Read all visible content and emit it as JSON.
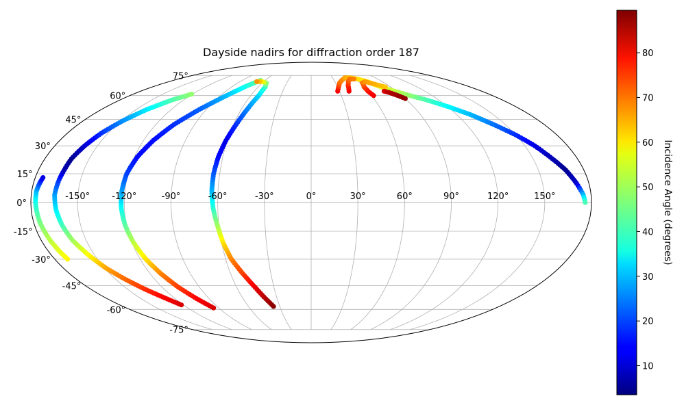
{
  "chart_data": {
    "type": "scatter",
    "projection": "mollweide",
    "title": "Dayside nadirs for diffraction order 187",
    "grid": true,
    "lon_ticks": [
      -150,
      -120,
      -90,
      -60,
      -30,
      0,
      30,
      60,
      90,
      120,
      150
    ],
    "lon_tick_labels": [
      "-150°",
      "-120°",
      "-90°",
      "-60°",
      "-30°",
      "0°",
      "30°",
      "60°",
      "90°",
      "120°",
      "150°"
    ],
    "lat_ticks": [
      -75,
      -60,
      -45,
      -30,
      -15,
      0,
      15,
      30,
      45,
      60,
      75
    ],
    "lat_tick_labels": [
      "-75°",
      "-60°",
      "-45°",
      "-30°",
      "-15°",
      "0°",
      "15°",
      "30°",
      "45°",
      "60°",
      "75°"
    ],
    "colorbar": {
      "label": "Incidence Angle (degrees)",
      "range": [
        3.5,
        89.5
      ],
      "ticks": [
        10,
        20,
        30,
        40,
        50,
        60,
        70,
        80
      ],
      "colormap": "jet"
    },
    "series": [
      {
        "points": [
          [
            -171,
            -30,
            58
          ],
          [
            -174,
            -20,
            52
          ],
          [
            -176,
            -10,
            46
          ],
          [
            -177,
            0,
            38
          ],
          [
            -177,
            6,
            30
          ],
          [
            -176,
            10,
            20
          ],
          [
            -175,
            13,
            12
          ]
        ]
      },
      {
        "points": [
          [
            -122,
            -57,
            82
          ],
          [
            -129,
            -52,
            79
          ],
          [
            -136,
            -47,
            75
          ],
          [
            -143,
            -41,
            70
          ],
          [
            -149,
            -35,
            65
          ],
          [
            -154,
            -28,
            58
          ],
          [
            -159,
            -20,
            50
          ],
          [
            -162,
            -12,
            42
          ],
          [
            -164,
            -4,
            35
          ],
          [
            -165,
            4,
            28
          ],
          [
            -164,
            12,
            18
          ],
          [
            -163,
            17,
            8
          ],
          [
            -162,
            23,
            5
          ],
          [
            -159,
            30,
            10
          ],
          [
            -155,
            37,
            18
          ],
          [
            -149,
            44,
            26
          ],
          [
            -141,
            51,
            34
          ],
          [
            -131,
            57,
            42
          ],
          [
            -121,
            61,
            48
          ]
        ]
      },
      {
        "points": [
          [
            -95,
            -59,
            82
          ],
          [
            -101,
            -53,
            79
          ],
          [
            -107,
            -46,
            74
          ],
          [
            -112,
            -38,
            68
          ],
          [
            -116,
            -30,
            60
          ],
          [
            -119,
            -21,
            52
          ],
          [
            -121,
            -12,
            44
          ],
          [
            -122,
            -3,
            37
          ],
          [
            -122,
            6,
            28
          ],
          [
            -121,
            15,
            20
          ],
          [
            -118,
            24,
            15
          ],
          [
            -113,
            33,
            15
          ],
          [
            -106,
            42,
            18
          ],
          [
            -96,
            51,
            22
          ],
          [
            -84,
            60,
            30
          ],
          [
            -74,
            67,
            38
          ],
          [
            -66,
            71,
            45
          ]
        ]
      },
      {
        "points": [
          [
            -36,
            -58,
            89
          ],
          [
            -41,
            -52,
            85
          ],
          [
            -46,
            -45,
            80
          ],
          [
            -51,
            -38,
            74
          ],
          [
            -56,
            -30,
            68
          ],
          [
            -59,
            -21,
            60
          ],
          [
            -61,
            -12,
            50
          ],
          [
            -63,
            -3,
            40
          ],
          [
            -64,
            6,
            30
          ],
          [
            -64,
            15,
            22
          ],
          [
            -63,
            24,
            15
          ],
          [
            -61,
            33,
            12
          ],
          [
            -58,
            42,
            18
          ],
          [
            -55,
            51,
            25
          ],
          [
            -52,
            60,
            32
          ],
          [
            -52,
            66,
            40
          ],
          [
            -55,
            69,
            48
          ],
          [
            -62,
            70,
            58
          ],
          [
            -69,
            70,
            66
          ]
        ]
      },
      {
        "points": [
          [
            28,
            63,
            80
          ],
          [
            31,
            66,
            75
          ],
          [
            35,
            69,
            70
          ],
          [
            40,
            71,
            68
          ],
          [
            47,
            73,
            65
          ],
          [
            55,
            73,
            62
          ],
          [
            63,
            72,
            60
          ],
          [
            71,
            70,
            58
          ],
          [
            79,
            66,
            55
          ],
          [
            88,
            63,
            52
          ],
          [
            98,
            60,
            48
          ],
          [
            109,
            57,
            42
          ],
          [
            120,
            53,
            36
          ],
          [
            131,
            48,
            30
          ],
          [
            141,
            42,
            24
          ],
          [
            150,
            36,
            18
          ],
          [
            157,
            30,
            12
          ],
          [
            163,
            23,
            8
          ],
          [
            168,
            17,
            5
          ],
          [
            172,
            10,
            10
          ],
          [
            175,
            4,
            30
          ],
          [
            176,
            0,
            42
          ]
        ]
      },
      {
        "points": [
          [
            40,
            63,
            80
          ],
          [
            43,
            67,
            76
          ],
          [
            47,
            70,
            72
          ],
          [
            52,
            72,
            70
          ],
          [
            58,
            72,
            68
          ]
        ]
      },
      {
        "points": [
          [
            62,
            60,
            80
          ],
          [
            60,
            63,
            78
          ],
          [
            60,
            66,
            74
          ],
          [
            63,
            69,
            70
          ],
          [
            68,
            70,
            66
          ],
          [
            76,
            68,
            64
          ],
          [
            84,
            66,
            62
          ]
        ]
      },
      {
        "points": [
          [
            77,
            63,
            82
          ],
          [
            81,
            62,
            85
          ],
          [
            86,
            60,
            87
          ],
          [
            90,
            58,
            88
          ]
        ]
      }
    ]
  }
}
